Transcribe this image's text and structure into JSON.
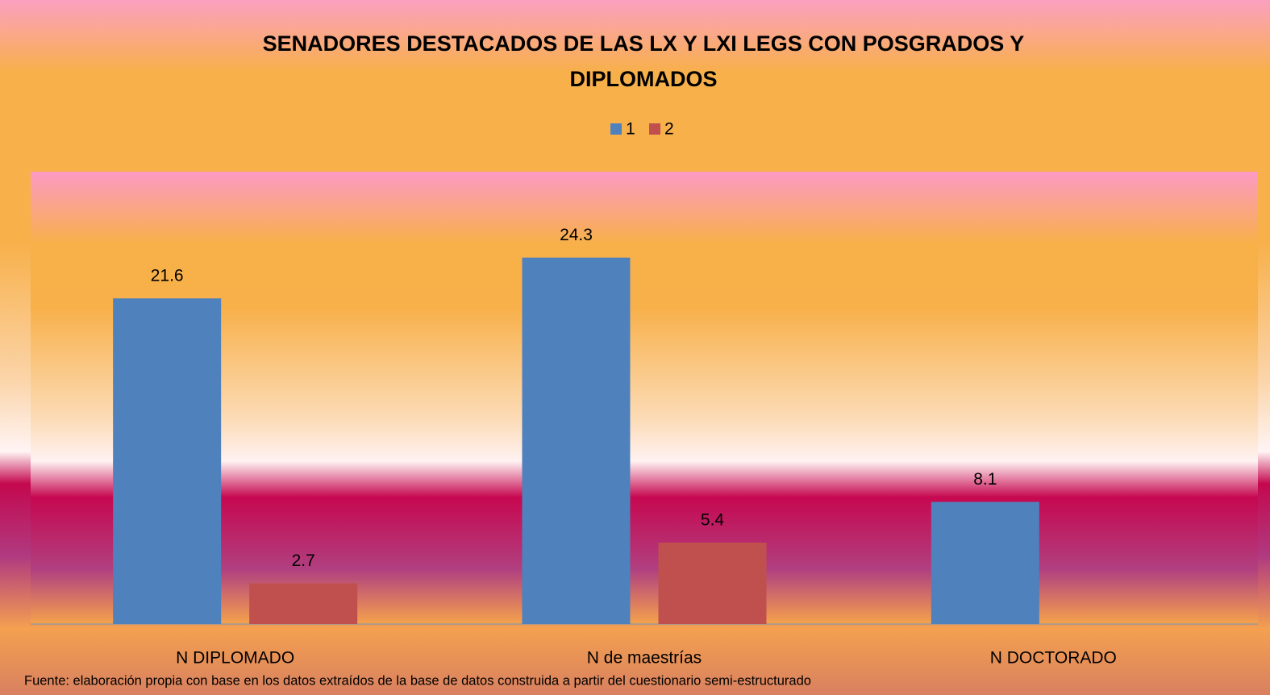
{
  "chart_data": {
    "type": "bar",
    "title": "SENADORES DESTACADOS DE LAS LX Y LXI LEGS CON POSGRADOS Y DIPLOMADOS",
    "categories": [
      "N DIPLOMADO",
      "N de maestrías",
      "N DOCTORADO"
    ],
    "series": [
      {
        "name": "1",
        "color": "#4f81bd",
        "values": [
          21.6,
          24.3,
          8.1
        ]
      },
      {
        "name": "2",
        "color": "#c0504d",
        "values": [
          2.7,
          5.4,
          null
        ]
      }
    ],
    "ylim": [
      0,
      30
    ],
    "legend": "top",
    "source": "Fuente: elaboración propia  con base en los datos extraídos de la base de datos  construida a partir del cuestionario semi-estructurado"
  }
}
